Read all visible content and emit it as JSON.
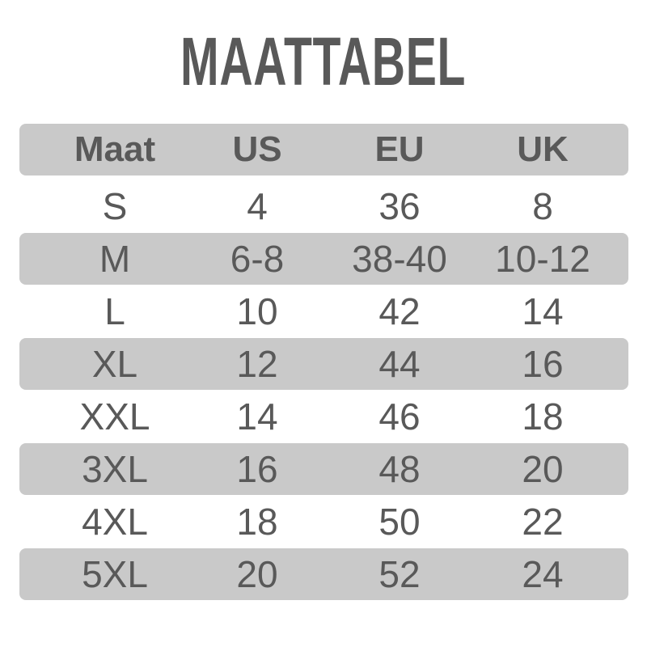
{
  "title": "MAATTABEL",
  "colors": {
    "band": "#c9c9c9",
    "text": "#595959"
  },
  "headers": [
    "Maat",
    "US",
    "EU",
    "UK"
  ],
  "rows": [
    [
      "S",
      "4",
      "36",
      "8"
    ],
    [
      "M",
      "6-8",
      "38-40",
      "10-12"
    ],
    [
      "L",
      "10",
      "42",
      "14"
    ],
    [
      "XL",
      "12",
      "44",
      "16"
    ],
    [
      "XXL",
      "14",
      "46",
      "18"
    ],
    [
      "3XL",
      "16",
      "48",
      "20"
    ],
    [
      "4XL",
      "18",
      "50",
      "22"
    ],
    [
      "5XL",
      "20",
      "52",
      "24"
    ]
  ]
}
